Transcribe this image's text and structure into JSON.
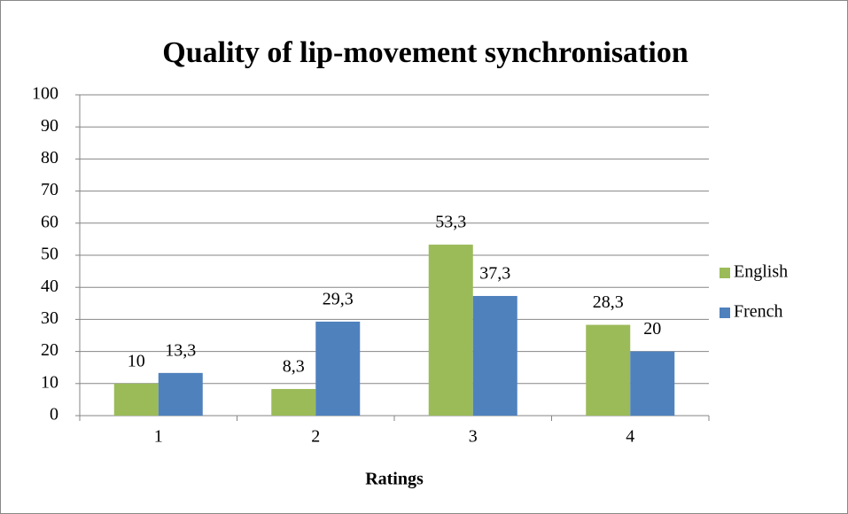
{
  "chart_data": {
    "type": "bar",
    "title": "Quality of lip-movement synchronisation",
    "x_label": "Ratings",
    "categories": [
      "1",
      "2",
      "3",
      "4"
    ],
    "series": [
      {
        "name": "English",
        "color": "#9bbb59",
        "values": [
          10,
          8.3,
          53.3,
          28.3
        ],
        "value_labels": [
          "10",
          "8,3",
          "53,3",
          "28,3"
        ]
      },
      {
        "name": "French",
        "color": "#4f81bd",
        "values": [
          13.3,
          29.3,
          37.3,
          20
        ],
        "value_labels": [
          "13,3",
          "29,3",
          "37,3",
          "20"
        ]
      }
    ],
    "ylim": [
      0,
      100
    ],
    "yticks": [
      0,
      10,
      20,
      30,
      40,
      50,
      60,
      70,
      80,
      90,
      100
    ],
    "grid": true,
    "legend": "right"
  }
}
